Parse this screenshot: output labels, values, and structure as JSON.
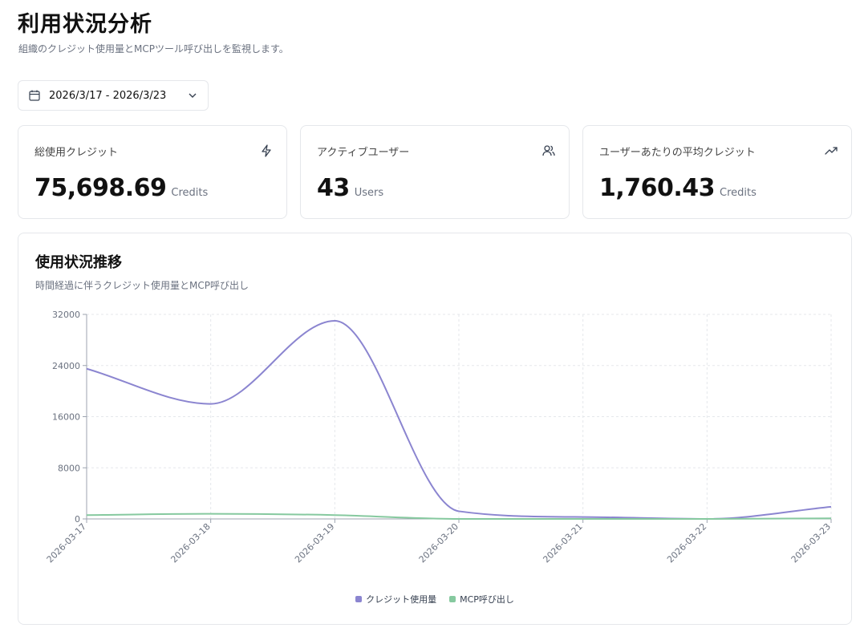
{
  "header": {
    "title": "利用状況分析",
    "subtitle": "組織のクレジット使用量とMCPツール呼び出しを監視します。"
  },
  "date_range": {
    "label": "2026/3/17 - 2026/3/23",
    "icon": "calendar-icon"
  },
  "stats": [
    {
      "title": "総使用クレジット",
      "value": "75,698.69",
      "unit": "Credits",
      "icon": "lightning-icon"
    },
    {
      "title": "アクティブユーザー",
      "value": "43",
      "unit": "Users",
      "icon": "users-icon"
    },
    {
      "title": "ユーザーあたりの平均クレジット",
      "value": "1,760.43",
      "unit": "Credits",
      "icon": "trending-up-icon"
    }
  ],
  "chart_section": {
    "title": "使用状況推移",
    "description": "時間経過に伴うクレジット使用量とMCP呼び出し"
  },
  "chart_data": {
    "type": "line",
    "x": [
      "2026-03-17",
      "2026-03-18",
      "2026-03-19",
      "2026-03-20",
      "2026-03-21",
      "2026-03-22",
      "2026-03-23"
    ],
    "yticks": [
      0,
      8000,
      16000,
      24000,
      32000
    ],
    "ylim": [
      0,
      32000
    ],
    "grid": true,
    "legend_position": "bottom",
    "series": [
      {
        "name": "クレジット使用量",
        "color": "#8b85d0",
        "values": [
          23500,
          18000,
          31000,
          1200,
          300,
          0,
          1900
        ]
      },
      {
        "name": "MCP呼び出し",
        "color": "#86c99f",
        "values": [
          600,
          800,
          600,
          0,
          0,
          0,
          100
        ]
      }
    ]
  }
}
